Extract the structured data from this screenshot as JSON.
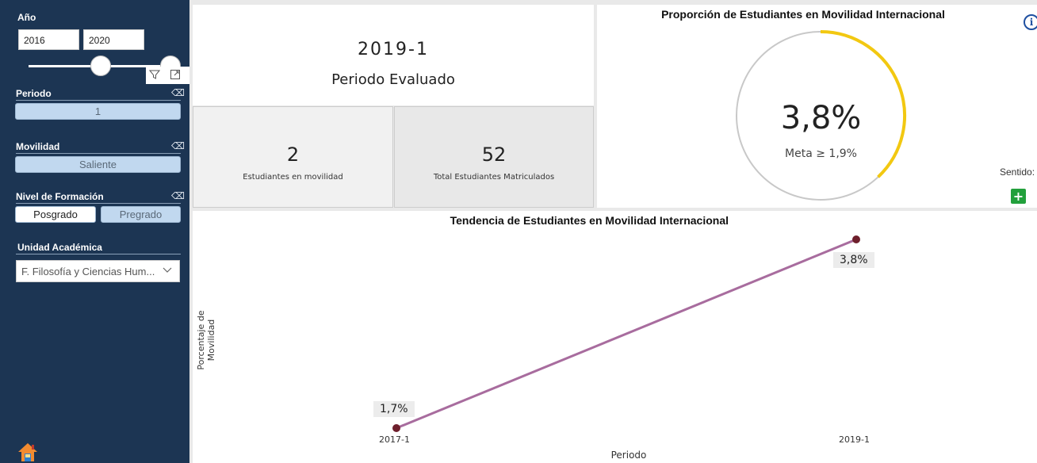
{
  "sidebar": {
    "year_label": "Año",
    "year_start": "2016",
    "year_end": "2020",
    "periodo_label": "Periodo",
    "periodo_value": "1",
    "movilidad_label": "Movilidad",
    "movilidad_value": "Saliente",
    "nivel_label": "Nivel de Formación",
    "nivel_options": [
      "Posgrado",
      "Pregrado"
    ],
    "nivel_selected": "Pregrado",
    "unidad_label": "Unidad Académica",
    "unidad_value": "F. Filosofía y Ciencias Hum..."
  },
  "period_card": {
    "period": "2019-1",
    "caption": "Periodo Evaluado"
  },
  "kpis": [
    {
      "value": "2",
      "label": "Estudiantes en movilidad"
    },
    {
      "value": "52",
      "label": "Total Estudiantes Matriculados"
    }
  ],
  "gauge": {
    "title": "Proporción de Estudiantes en Movilidad Internacional",
    "value_text": "3,8%",
    "meta_text": "Meta ≥ 1,9%",
    "fraction": 0.38,
    "sentido_label": "Sentido:",
    "fill_color": "#f2c811",
    "track_color": "#c8c8c8"
  },
  "chart_data": {
    "type": "line",
    "title": "Tendencia de Estudiantes en Movilidad Internacional",
    "xlabel": "Periodo",
    "ylabel": "Porcentaje de Movilidad",
    "categories": [
      "2017-1",
      "2019-1"
    ],
    "series": [
      {
        "values": [
          1.7,
          3.8
        ],
        "labels": [
          "1,7%",
          "3,8%"
        ],
        "color": "#a86c9e",
        "marker_color": "#6e1f2c"
      }
    ],
    "ylim": [
      1.7,
      3.8
    ],
    "grid": false
  },
  "icons": {
    "filter": "filter-icon",
    "focus": "focus-mode-icon",
    "eraser": "eraser-icon",
    "info": "info-icon",
    "home": "home-icon",
    "plus": "plus-icon"
  }
}
